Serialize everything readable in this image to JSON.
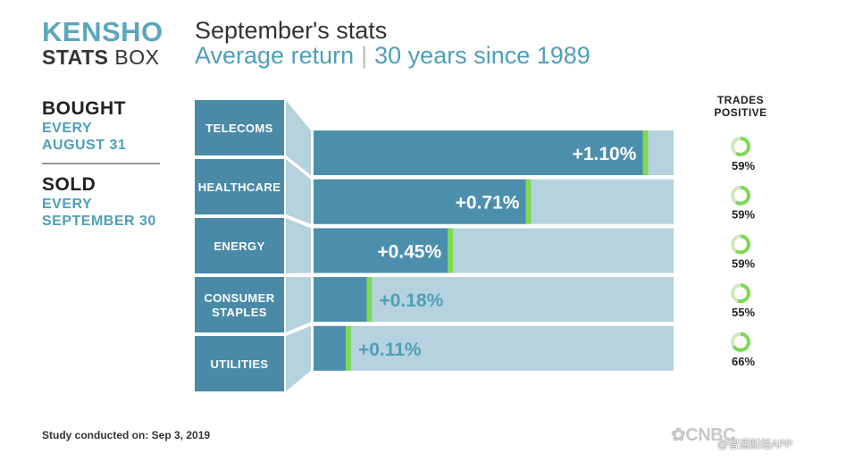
{
  "logo": {
    "line1": "KENSHO",
    "line2_bold": "STATS",
    "line2_rest": " BOX"
  },
  "header": {
    "title": "September's stats",
    "subtitle_left": "Average return",
    "subtitle_sep": "|",
    "subtitle_right": "30 years since 1989"
  },
  "side": {
    "bought": "BOUGHT",
    "bought_line2": "EVERY",
    "bought_line3": "AUGUST 31",
    "sold": "SOLD",
    "sold_line2": "EVERY",
    "sold_line3": "SEPTEMBER 30"
  },
  "trades_positive_header": {
    "line1": "TRADES",
    "line2": "POSITIVE"
  },
  "footer": {
    "study": "Study conducted on: Sep 3, 2019"
  },
  "brand": {
    "cnbc": "CNBC",
    "watermark": "@智通财经APP"
  },
  "colors": {
    "bar_fill": "#4c8fad",
    "bar_track": "#b5d2de",
    "accent": "#7ed957",
    "label_box": "#4a8aa7",
    "teal_text": "#4f9fb8"
  },
  "chart_data": {
    "type": "bar",
    "orientation": "horizontal",
    "categories": [
      "TELECOMS",
      "HEALTHCARE",
      "ENERGY",
      "CONSUMER STAPLES",
      "UTILITIES"
    ],
    "category_lines": [
      [
        "TELECOMS"
      ],
      [
        "HEALTHCARE"
      ],
      [
        "ENERGY"
      ],
      [
        "CONSUMER",
        "STAPLES"
      ],
      [
        "UTILITIES"
      ]
    ],
    "values": [
      1.1,
      0.71,
      0.45,
      0.18,
      0.11
    ],
    "value_labels": [
      "+1.10%",
      "+0.71%",
      "+0.45%",
      "+0.18%",
      "+0.11%"
    ],
    "trades_positive": [
      59,
      59,
      59,
      55,
      66
    ],
    "trades_positive_labels": [
      "59%",
      "59%",
      "59%",
      "55%",
      "66%"
    ],
    "xlim": [
      0,
      1.2
    ],
    "title": "September's stats",
    "legend": "none",
    "grid": false
  }
}
